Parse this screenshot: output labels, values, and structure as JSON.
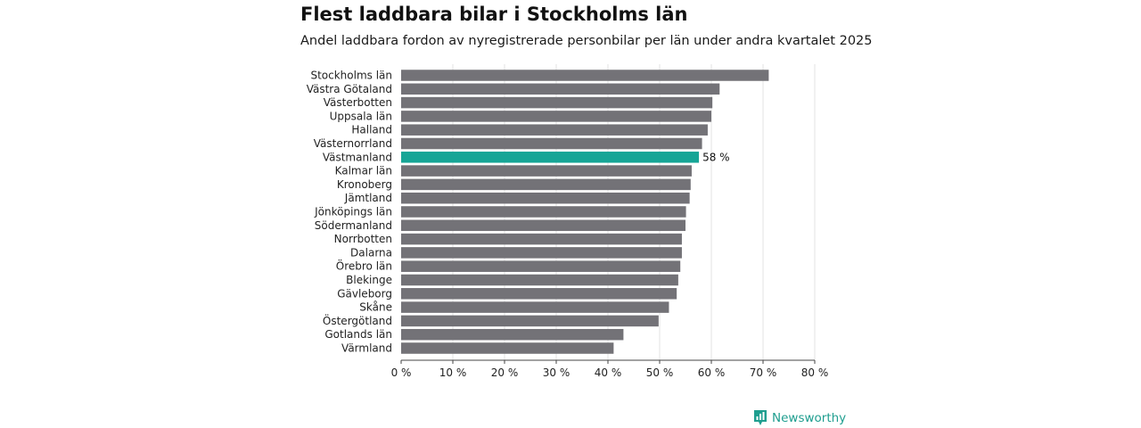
{
  "colors": {
    "bar": "#737277",
    "highlight": "#16a596",
    "grid": "#e3e3e3",
    "axis": "#444444",
    "brand": "#1f9e8f"
  },
  "brand": {
    "name": "Newsworthy",
    "icon": "bar-chart-speech-icon"
  },
  "chart_data": {
    "type": "bar",
    "orientation": "horizontal",
    "title": "Flest laddbara bilar i Stockholms län",
    "subtitle": "Andel laddbara fordon av nyregistrerade personbilar per län under andra kvartalet 2025",
    "xlabel": "",
    "ylabel": "",
    "xlim": [
      0,
      80
    ],
    "ticks": [
      0,
      10,
      20,
      30,
      40,
      50,
      60,
      70,
      80
    ],
    "tick_labels": [
      "0 %",
      "10 %",
      "20 %",
      "30 %",
      "40 %",
      "50 %",
      "60 %",
      "70 %",
      "80 %"
    ],
    "grid": true,
    "categories": [
      "Stockholms län",
      "Västra Götaland",
      "Västerbotten",
      "Uppsala län",
      "Halland",
      "Västernorrland",
      "Västmanland",
      "Kalmar län",
      "Kronoberg",
      "Jämtland",
      "Jönköpings län",
      "Södermanland",
      "Norrbotten",
      "Dalarna",
      "Örebro län",
      "Blekinge",
      "Gävleborg",
      "Skåne",
      "Östergötland",
      "Gotlands län",
      "Värmland"
    ],
    "values": [
      71.1,
      61.6,
      60.2,
      60.0,
      59.3,
      58.2,
      57.6,
      56.2,
      56.0,
      55.8,
      55.1,
      55.0,
      54.3,
      54.3,
      54.0,
      53.6,
      53.3,
      51.8,
      49.8,
      43.0,
      41.1
    ],
    "highlight": "Västmanland",
    "data_labels": [
      {
        "category": "Västmanland",
        "text": "58 %"
      }
    ]
  }
}
